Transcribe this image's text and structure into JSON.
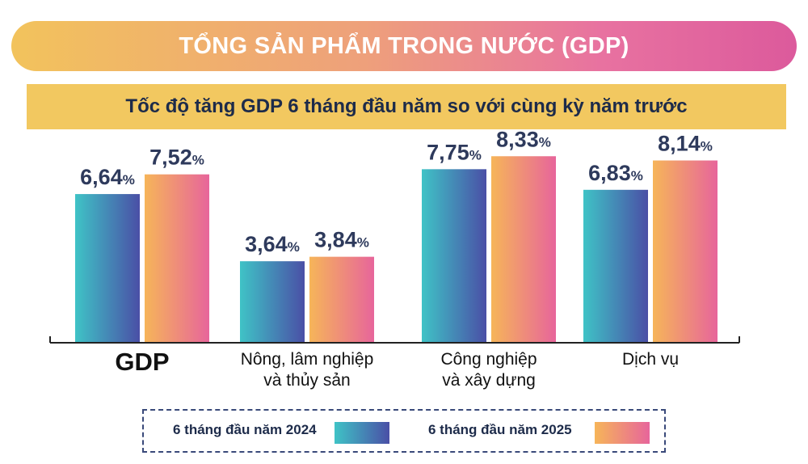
{
  "header": {
    "title": "TỔNG SẢN PHẨM TRONG NƯỚC (GDP)",
    "subtitle": "Tốc độ tăng GDP 6 tháng đầu năm so với cùng kỳ năm trước"
  },
  "legend": {
    "series1": "6 tháng đầu năm 2024",
    "series2": "6 tháng đầu năm 2025"
  },
  "colors": {
    "series1_start": "#3fc3c6",
    "series1_end": "#4a4fa6",
    "series2_start": "#f6b559",
    "series2_end": "#e7659b",
    "label_text": "#2e3a5c",
    "banner_start": "#f2c35c",
    "banner_end": "#dc5a9c",
    "subtitle_bg": "#f2c860"
  },
  "chart_data": {
    "type": "bar",
    "title": "Tốc độ tăng GDP 6 tháng đầu năm so với cùng kỳ năm trước",
    "categories": [
      "GDP",
      "Nông, lâm nghiệp\nvà thủy sản",
      "Công nghiệp\nvà xây dựng",
      "Dịch vụ"
    ],
    "series": [
      {
        "name": "6 tháng đầu năm 2024",
        "values": [
          6.64,
          3.64,
          7.75,
          6.83
        ],
        "labels": [
          "6,64",
          "3,64",
          "7,75",
          "6,83"
        ]
      },
      {
        "name": "6 tháng đầu năm 2025",
        "values": [
          7.52,
          3.84,
          8.33,
          8.14
        ],
        "labels": [
          "7,52",
          "3,84",
          "8,33",
          "8,14"
        ]
      }
    ],
    "unit": "%",
    "ylim": [
      0,
      10
    ],
    "grid": false,
    "legend_position": "bottom"
  }
}
